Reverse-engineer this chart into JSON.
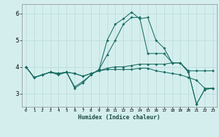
{
  "xlabel": "Humidex (Indice chaleur)",
  "ylabel": "",
  "background_color": "#d4eeee",
  "grid_color": "#b8d8d8",
  "line_color": "#1a6e64",
  "xlim": [
    -0.5,
    23.5
  ],
  "ylim": [
    2.5,
    6.35
  ],
  "yticks": [
    3,
    4,
    5,
    6
  ],
  "xticks": [
    0,
    1,
    2,
    3,
    4,
    5,
    6,
    7,
    8,
    9,
    10,
    11,
    12,
    13,
    14,
    15,
    16,
    17,
    18,
    19,
    20,
    21,
    22,
    23
  ],
  "lines": [
    [
      4.0,
      3.6,
      3.7,
      3.8,
      3.7,
      3.8,
      3.2,
      3.4,
      3.7,
      3.9,
      5.0,
      5.6,
      5.8,
      6.05,
      5.8,
      5.85,
      5.0,
      4.7,
      4.15,
      4.15,
      3.8,
      2.6,
      3.15,
      3.2
    ],
    [
      4.0,
      3.6,
      3.7,
      3.8,
      3.75,
      3.8,
      3.75,
      3.65,
      3.75,
      3.85,
      3.95,
      4.0,
      4.0,
      4.05,
      4.1,
      4.1,
      4.1,
      4.1,
      4.15,
      4.15,
      3.85,
      3.85,
      3.85,
      3.85
    ],
    [
      4.0,
      3.6,
      3.7,
      3.8,
      3.75,
      3.8,
      3.75,
      3.65,
      3.75,
      3.85,
      3.9,
      3.9,
      3.9,
      3.9,
      3.95,
      3.95,
      3.85,
      3.8,
      3.75,
      3.7,
      3.6,
      3.5,
      3.2,
      3.2
    ],
    [
      4.0,
      3.6,
      3.7,
      3.8,
      3.75,
      3.8,
      3.25,
      3.45,
      3.7,
      3.9,
      4.45,
      5.0,
      5.6,
      5.85,
      5.85,
      4.5,
      4.5,
      4.5,
      4.15,
      4.15,
      3.8,
      2.6,
      3.15,
      3.2
    ]
  ]
}
